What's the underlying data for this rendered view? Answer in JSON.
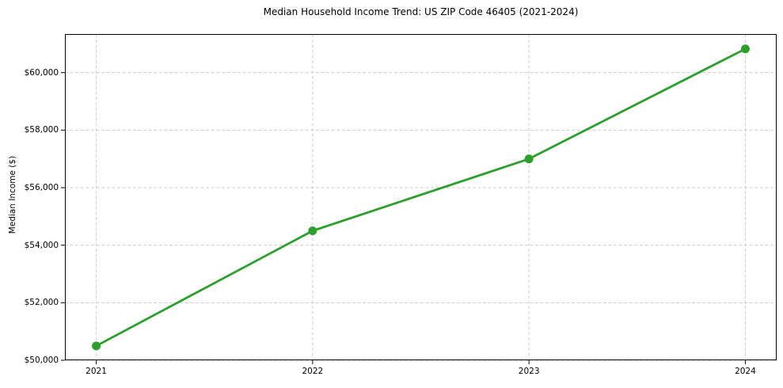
{
  "chart_data": {
    "type": "line",
    "title": "Median Household Income Trend: US ZIP Code 46405 (2021-2024)",
    "xlabel": "",
    "ylabel": "Median Income ($)",
    "categories": [
      "2021",
      "2022",
      "2023",
      "2024"
    ],
    "series": [
      {
        "name": "Median Income ($)",
        "values": [
          50500,
          54500,
          57000,
          60825
        ],
        "color": "#2ca02c",
        "marker": "circle"
      }
    ],
    "y_ticks": [
      50000,
      52000,
      54000,
      56000,
      58000,
      60000
    ],
    "y_tick_labels": [
      "$50,000",
      "$52,000",
      "$54,000",
      "$56,000",
      "$58,000",
      "$60,000"
    ],
    "ylim": [
      50000,
      61340
    ],
    "grid": "dashed",
    "grid_color": "#cccccc",
    "spine_color": "#000000",
    "background": "#ffffff",
    "legend_position": "none"
  }
}
